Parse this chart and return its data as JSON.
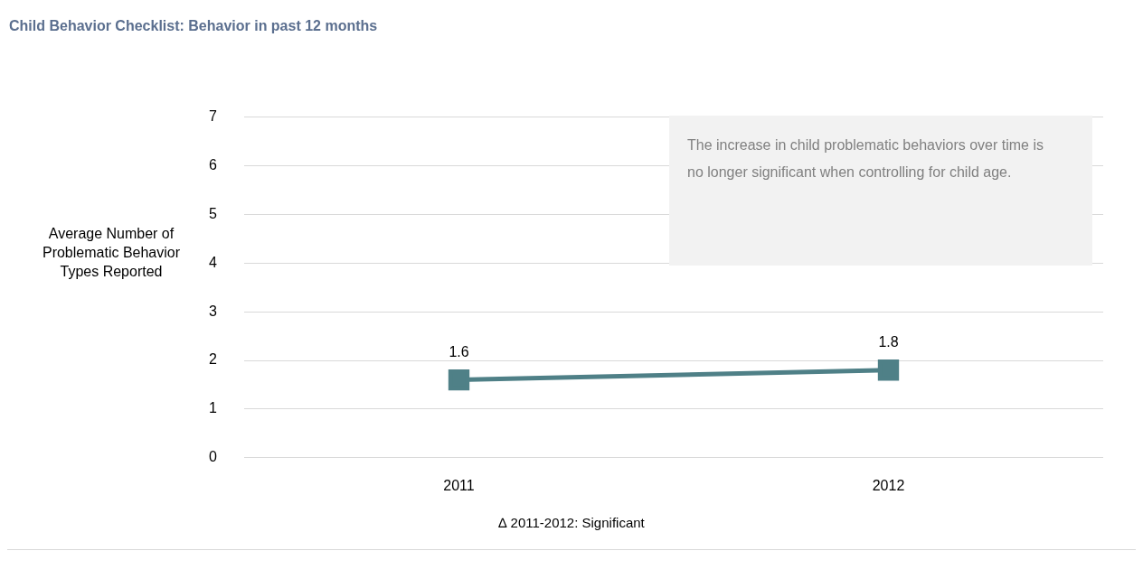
{
  "chart_data": {
    "type": "line",
    "title": "Child Behavior Checklist: Behavior in past 12 months",
    "ylabel": "Average Number of Problematic Behavior Types Reported",
    "categories": [
      "2011",
      "2012"
    ],
    "series": [
      {
        "color": "#4f8087",
        "values": [
          1.6,
          1.8
        ]
      }
    ],
    "ylim": [
      0,
      7
    ],
    "yticks": [
      0,
      1,
      2,
      3,
      4,
      5,
      6,
      7
    ],
    "grid": "y",
    "legend": false,
    "marker": "square",
    "line_style": "solid",
    "data_labels": true,
    "annotations": [
      "The increase in child problematic behaviors over time is no longer significant when controlling for child age.",
      "∆ 2011-2012: Significant"
    ]
  }
}
